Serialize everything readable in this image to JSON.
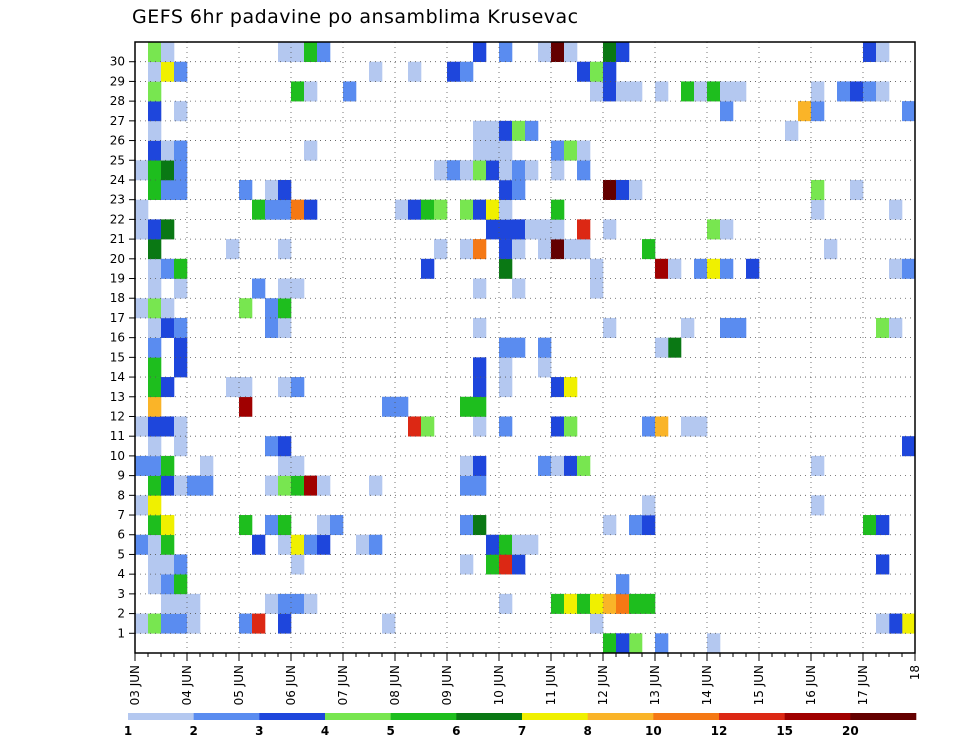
{
  "chart_data": {
    "type": "heatmap",
    "title": "GEFS 6hr padavine po ansamblima Krusevac",
    "xlabel": "",
    "ylabel": "",
    "x_tick_labels": [
      "03 JUN",
      "04 JUN",
      "05 JUN",
      "06 JUN",
      "07 JUN",
      "08 JUN",
      "09 JUN",
      "10 JUN",
      "11 JUN",
      "12 JUN",
      "13 JUN",
      "14 JUN",
      "15 JUN",
      "16 JUN",
      "17 JUN",
      "18"
    ],
    "y_tick_labels": [
      "1",
      "2",
      "3",
      "4",
      "5",
      "6",
      "7",
      "8",
      "9",
      "10",
      "11",
      "12",
      "13",
      "14",
      "15",
      "16",
      "17",
      "18",
      "19",
      "20",
      "21",
      "22",
      "23",
      "24",
      "25",
      "26",
      "27",
      "28",
      "29",
      "30"
    ],
    "steps_per_day": 4,
    "n_steps": 60,
    "n_members": 30,
    "grid": "dotted",
    "legend_position": "bottom",
    "legend_labels": [
      "1",
      "2",
      "3",
      "4",
      "5",
      "6",
      "7",
      "8",
      "10",
      "12",
      "15",
      "20"
    ],
    "levels": [
      1,
      2,
      3,
      4,
      5,
      6,
      7,
      8,
      10,
      12,
      15,
      20
    ],
    "colors": [
      "#b4c8f0",
      "#5a8cf0",
      "#1e46dc",
      "#78e650",
      "#1ebe1e",
      "#0a7814",
      "#f0f000",
      "#fab428",
      "#f57814",
      "#dc2814",
      "#a00000",
      "#640000"
    ],
    "cells": [
      [
        1,
        0,
        1
      ],
      [
        1,
        1,
        4
      ],
      [
        1,
        2,
        2
      ],
      [
        1,
        3,
        2
      ],
      [
        1,
        4,
        1
      ],
      [
        1,
        8,
        2
      ],
      [
        1,
        9,
        10
      ],
      [
        1,
        11,
        3
      ],
      [
        1,
        19,
        1
      ],
      [
        1,
        35,
        1
      ],
      [
        1,
        59,
        7
      ],
      [
        1,
        58,
        3
      ],
      [
        1,
        57,
        1
      ],
      [
        2,
        2,
        1
      ],
      [
        2,
        3,
        1
      ],
      [
        2,
        4,
        1
      ],
      [
        2,
        10,
        1
      ],
      [
        2,
        11,
        2
      ],
      [
        2,
        12,
        2
      ],
      [
        2,
        13,
        1
      ],
      [
        2,
        28,
        1
      ],
      [
        2,
        32,
        5
      ],
      [
        2,
        33,
        7
      ],
      [
        2,
        34,
        5
      ],
      [
        2,
        35,
        7
      ],
      [
        2,
        36,
        8
      ],
      [
        2,
        37,
        9
      ],
      [
        2,
        38,
        5
      ],
      [
        2,
        39,
        5
      ],
      [
        3,
        1,
        1
      ],
      [
        3,
        2,
        2
      ],
      [
        3,
        3,
        5
      ],
      [
        3,
        37,
        2
      ],
      [
        4,
        1,
        1
      ],
      [
        4,
        2,
        1
      ],
      [
        4,
        3,
        2
      ],
      [
        4,
        12,
        1
      ],
      [
        4,
        25,
        1
      ],
      [
        4,
        27,
        5
      ],
      [
        4,
        28,
        10
      ],
      [
        4,
        29,
        3
      ],
      [
        4,
        57,
        3
      ],
      [
        5,
        0,
        2
      ],
      [
        5,
        1,
        1
      ],
      [
        5,
        2,
        5
      ],
      [
        5,
        9,
        3
      ],
      [
        5,
        11,
        1
      ],
      [
        5,
        12,
        7
      ],
      [
        5,
        13,
        2
      ],
      [
        5,
        14,
        3
      ],
      [
        5,
        17,
        1
      ],
      [
        5,
        18,
        2
      ],
      [
        5,
        27,
        3
      ],
      [
        5,
        28,
        5
      ],
      [
        5,
        29,
        1
      ],
      [
        5,
        30,
        1
      ],
      [
        6,
        1,
        5
      ],
      [
        6,
        2,
        7
      ],
      [
        6,
        8,
        5
      ],
      [
        6,
        10,
        2
      ],
      [
        6,
        11,
        5
      ],
      [
        6,
        14,
        1
      ],
      [
        6,
        15,
        2
      ],
      [
        6,
        25,
        2
      ],
      [
        6,
        26,
        6
      ],
      [
        6,
        36,
        1
      ],
      [
        6,
        38,
        2
      ],
      [
        6,
        39,
        3
      ],
      [
        6,
        56,
        5
      ],
      [
        6,
        57,
        3
      ],
      [
        7,
        0,
        1
      ],
      [
        7,
        1,
        7
      ],
      [
        7,
        39,
        1
      ],
      [
        7,
        52,
        1
      ],
      [
        8,
        1,
        5
      ],
      [
        8,
        2,
        3
      ],
      [
        8,
        3,
        1
      ],
      [
        8,
        4,
        2
      ],
      [
        8,
        5,
        2
      ],
      [
        8,
        10,
        1
      ],
      [
        8,
        11,
        4
      ],
      [
        8,
        12,
        5
      ],
      [
        8,
        13,
        11
      ],
      [
        8,
        14,
        1
      ],
      [
        8,
        18,
        1
      ],
      [
        8,
        25,
        2
      ],
      [
        8,
        26,
        2
      ],
      [
        9,
        0,
        2
      ],
      [
        9,
        1,
        2
      ],
      [
        9,
        2,
        5
      ],
      [
        9,
        5,
        1
      ],
      [
        9,
        11,
        1
      ],
      [
        9,
        12,
        1
      ],
      [
        9,
        25,
        1
      ],
      [
        9,
        26,
        3
      ],
      [
        9,
        31,
        2
      ],
      [
        9,
        32,
        1
      ],
      [
        9,
        33,
        3
      ],
      [
        9,
        34,
        4
      ],
      [
        9,
        52,
        1
      ],
      [
        10,
        1,
        1
      ],
      [
        10,
        3,
        1
      ],
      [
        10,
        10,
        2
      ],
      [
        10,
        11,
        3
      ],
      [
        10,
        59,
        3
      ],
      [
        11,
        0,
        1
      ],
      [
        11,
        1,
        3
      ],
      [
        11,
        2,
        3
      ],
      [
        11,
        3,
        1
      ],
      [
        11,
        21,
        10
      ],
      [
        11,
        22,
        4
      ],
      [
        11,
        26,
        1
      ],
      [
        11,
        28,
        2
      ],
      [
        11,
        32,
        3
      ],
      [
        11,
        33,
        4
      ],
      [
        11,
        39,
        2
      ],
      [
        11,
        40,
        8
      ],
      [
        11,
        42,
        1
      ],
      [
        11,
        43,
        1
      ],
      [
        12,
        1,
        8
      ],
      [
        12,
        8,
        11
      ],
      [
        12,
        19,
        2
      ],
      [
        12,
        20,
        2
      ],
      [
        12,
        25,
        5
      ],
      [
        12,
        26,
        5
      ],
      [
        13,
        1,
        5
      ],
      [
        13,
        2,
        3
      ],
      [
        13,
        7,
        1
      ],
      [
        13,
        8,
        1
      ],
      [
        13,
        11,
        1
      ],
      [
        13,
        12,
        2
      ],
      [
        13,
        26,
        3
      ],
      [
        13,
        28,
        1
      ],
      [
        13,
        32,
        3
      ],
      [
        13,
        33,
        7
      ],
      [
        14,
        1,
        5
      ],
      [
        14,
        3,
        3
      ],
      [
        14,
        26,
        3
      ],
      [
        14,
        28,
        1
      ],
      [
        14,
        31,
        1
      ],
      [
        15,
        1,
        2
      ],
      [
        15,
        3,
        3
      ],
      [
        15,
        28,
        2
      ],
      [
        15,
        29,
        2
      ],
      [
        15,
        31,
        2
      ],
      [
        15,
        41,
        6
      ],
      [
        15,
        40,
        1
      ],
      [
        16,
        1,
        1
      ],
      [
        16,
        2,
        3
      ],
      [
        16,
        3,
        2
      ],
      [
        16,
        10,
        2
      ],
      [
        16,
        11,
        1
      ],
      [
        16,
        26,
        1
      ],
      [
        16,
        36,
        1
      ],
      [
        16,
        42,
        1
      ],
      [
        16,
        45,
        2
      ],
      [
        16,
        46,
        2
      ],
      [
        16,
        57,
        4
      ],
      [
        16,
        58,
        1
      ],
      [
        17,
        0,
        1
      ],
      [
        17,
        1,
        4
      ],
      [
        17,
        2,
        1
      ],
      [
        17,
        8,
        4
      ],
      [
        17,
        10,
        2
      ],
      [
        17,
        11,
        5
      ],
      [
        18,
        1,
        1
      ],
      [
        18,
        3,
        1
      ],
      [
        18,
        9,
        2
      ],
      [
        18,
        11,
        1
      ],
      [
        18,
        12,
        1
      ],
      [
        18,
        26,
        1
      ],
      [
        18,
        29,
        1
      ],
      [
        18,
        35,
        1
      ],
      [
        19,
        1,
        1
      ],
      [
        19,
        2,
        2
      ],
      [
        19,
        3,
        5
      ],
      [
        19,
        22,
        3
      ],
      [
        19,
        28,
        6
      ],
      [
        19,
        35,
        1
      ],
      [
        19,
        40,
        11
      ],
      [
        19,
        41,
        1
      ],
      [
        19,
        43,
        2
      ],
      [
        19,
        44,
        7
      ],
      [
        19,
        45,
        2
      ],
      [
        19,
        47,
        3
      ],
      [
        19,
        58,
        1
      ],
      [
        19,
        59,
        2
      ],
      [
        20,
        1,
        6
      ],
      [
        20,
        7,
        1
      ],
      [
        20,
        11,
        1
      ],
      [
        20,
        23,
        1
      ],
      [
        20,
        25,
        1
      ],
      [
        20,
        26,
        9
      ],
      [
        20,
        28,
        3
      ],
      [
        20,
        29,
        1
      ],
      [
        20,
        31,
        1
      ],
      [
        20,
        32,
        12
      ],
      [
        20,
        33,
        1
      ],
      [
        20,
        34,
        1
      ],
      [
        20,
        39,
        5
      ],
      [
        20,
        53,
        1
      ],
      [
        21,
        0,
        1
      ],
      [
        21,
        1,
        3
      ],
      [
        21,
        2,
        6
      ],
      [
        21,
        27,
        3
      ],
      [
        21,
        28,
        3
      ],
      [
        21,
        29,
        3
      ],
      [
        21,
        30,
        1
      ],
      [
        21,
        31,
        1
      ],
      [
        21,
        32,
        1
      ],
      [
        21,
        36,
        1
      ],
      [
        21,
        34,
        10
      ],
      [
        21,
        44,
        4
      ],
      [
        21,
        45,
        1
      ],
      [
        22,
        0,
        1
      ],
      [
        22,
        9,
        5
      ],
      [
        22,
        10,
        2
      ],
      [
        22,
        11,
        2
      ],
      [
        22,
        12,
        9
      ],
      [
        22,
        13,
        3
      ],
      [
        22,
        20,
        1
      ],
      [
        22,
        21,
        3
      ],
      [
        22,
        22,
        5
      ],
      [
        22,
        23,
        4
      ],
      [
        22,
        25,
        4
      ],
      [
        22,
        26,
        3
      ],
      [
        22,
        27,
        7
      ],
      [
        22,
        28,
        1
      ],
      [
        22,
        32,
        5
      ],
      [
        22,
        52,
        1
      ],
      [
        22,
        58,
        1
      ],
      [
        23,
        1,
        5
      ],
      [
        23,
        2,
        2
      ],
      [
        23,
        3,
        2
      ],
      [
        23,
        8,
        2
      ],
      [
        23,
        10,
        1
      ],
      [
        23,
        11,
        3
      ],
      [
        23,
        28,
        3
      ],
      [
        23,
        29,
        2
      ],
      [
        23,
        36,
        12
      ],
      [
        23,
        37,
        3
      ],
      [
        23,
        38,
        1
      ],
      [
        23,
        52,
        4
      ],
      [
        23,
        55,
        1
      ],
      [
        24,
        0,
        1
      ],
      [
        24,
        1,
        5
      ],
      [
        24,
        2,
        6
      ],
      [
        24,
        3,
        2
      ],
      [
        24,
        23,
        1
      ],
      [
        24,
        24,
        2
      ],
      [
        24,
        25,
        1
      ],
      [
        24,
        26,
        4
      ],
      [
        24,
        27,
        3
      ],
      [
        24,
        28,
        1
      ],
      [
        24,
        29,
        2
      ],
      [
        24,
        30,
        1
      ],
      [
        24,
        32,
        1
      ],
      [
        24,
        34,
        2
      ],
      [
        25,
        1,
        3
      ],
      [
        25,
        2,
        1
      ],
      [
        25,
        3,
        2
      ],
      [
        25,
        13,
        1
      ],
      [
        25,
        26,
        1
      ],
      [
        25,
        27,
        1
      ],
      [
        25,
        28,
        1
      ],
      [
        25,
        32,
        2
      ],
      [
        25,
        33,
        4
      ],
      [
        25,
        34,
        1
      ],
      [
        26,
        1,
        1
      ],
      [
        26,
        26,
        1
      ],
      [
        26,
        27,
        1
      ],
      [
        26,
        28,
        3
      ],
      [
        26,
        29,
        4
      ],
      [
        26,
        30,
        2
      ],
      [
        26,
        50,
        1
      ],
      [
        27,
        1,
        3
      ],
      [
        27,
        3,
        1
      ],
      [
        27,
        45,
        2
      ],
      [
        27,
        51,
        8
      ],
      [
        27,
        52,
        2
      ],
      [
        27,
        59,
        2
      ],
      [
        28,
        1,
        4
      ],
      [
        28,
        12,
        5
      ],
      [
        28,
        13,
        1
      ],
      [
        28,
        16,
        2
      ],
      [
        28,
        35,
        1
      ],
      [
        28,
        36,
        3
      ],
      [
        28,
        37,
        1
      ],
      [
        28,
        38,
        1
      ],
      [
        28,
        40,
        1
      ],
      [
        28,
        42,
        5
      ],
      [
        28,
        43,
        1
      ],
      [
        28,
        44,
        5
      ],
      [
        28,
        45,
        1
      ],
      [
        28,
        46,
        1
      ],
      [
        28,
        52,
        1
      ],
      [
        28,
        54,
        2
      ],
      [
        28,
        55,
        3
      ],
      [
        28,
        56,
        2
      ],
      [
        28,
        57,
        1
      ],
      [
        29,
        1,
        1
      ],
      [
        29,
        2,
        7
      ],
      [
        29,
        3,
        2
      ],
      [
        29,
        18,
        1
      ],
      [
        29,
        21,
        1
      ],
      [
        29,
        24,
        3
      ],
      [
        29,
        25,
        2
      ],
      [
        29,
        34,
        3
      ],
      [
        29,
        35,
        4
      ],
      [
        29,
        36,
        3
      ],
      [
        30,
        1,
        4
      ],
      [
        30,
        2,
        1
      ],
      [
        30,
        11,
        1
      ],
      [
        30,
        12,
        1
      ],
      [
        30,
        13,
        5
      ],
      [
        30,
        14,
        2
      ],
      [
        30,
        26,
        3
      ],
      [
        30,
        28,
        2
      ],
      [
        30,
        31,
        1
      ],
      [
        30,
        32,
        12
      ],
      [
        30,
        33,
        1
      ],
      [
        30,
        36,
        6
      ],
      [
        30,
        37,
        3
      ],
      [
        30,
        56,
        3
      ],
      [
        30,
        57,
        1
      ],
      [
        0,
        36,
        5
      ],
      [
        0,
        44,
        1
      ],
      [
        0,
        40,
        2
      ],
      [
        0,
        38,
        4
      ],
      [
        0,
        37,
        3
      ]
    ]
  }
}
